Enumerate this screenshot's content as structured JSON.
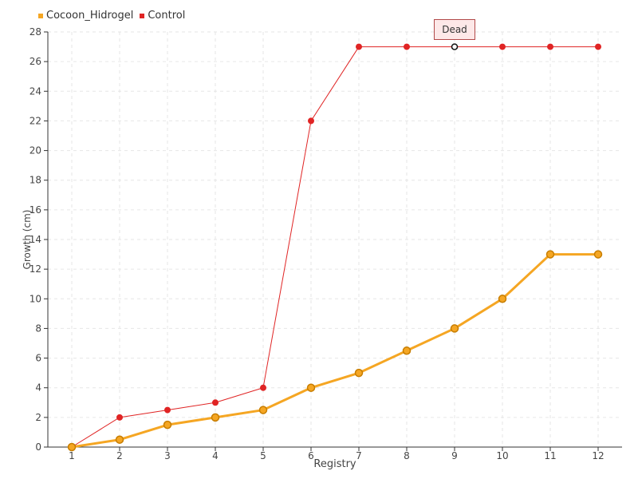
{
  "chart_data": {
    "type": "line",
    "categories": [
      "1",
      "2",
      "3",
      "4",
      "5",
      "6",
      "7",
      "8",
      "9",
      "10",
      "11",
      "12"
    ],
    "series": [
      {
        "name": "Cocoon_Hidrogel",
        "values": [
          0,
          0.5,
          1.5,
          2,
          2.5,
          4,
          5,
          6.5,
          8,
          10,
          13,
          13
        ],
        "color": "#f5a623"
      },
      {
        "name": "Control",
        "values": [
          0,
          2,
          2.5,
          3,
          4,
          22,
          27,
          27,
          27,
          27,
          27,
          27
        ],
        "color": "#e02424"
      }
    ],
    "xlabel": "Registry",
    "ylabel": "Growth (cm)",
    "ylim": [
      0,
      28
    ],
    "yticks": [
      "0",
      "2",
      "4",
      "6",
      "8",
      "10",
      "12",
      "14",
      "16",
      "18",
      "20",
      "22",
      "24",
      "26",
      "28"
    ],
    "grid": true,
    "legend_position": "top-left",
    "annotation": {
      "text": "Dead",
      "series": "Control",
      "category": "9"
    }
  }
}
